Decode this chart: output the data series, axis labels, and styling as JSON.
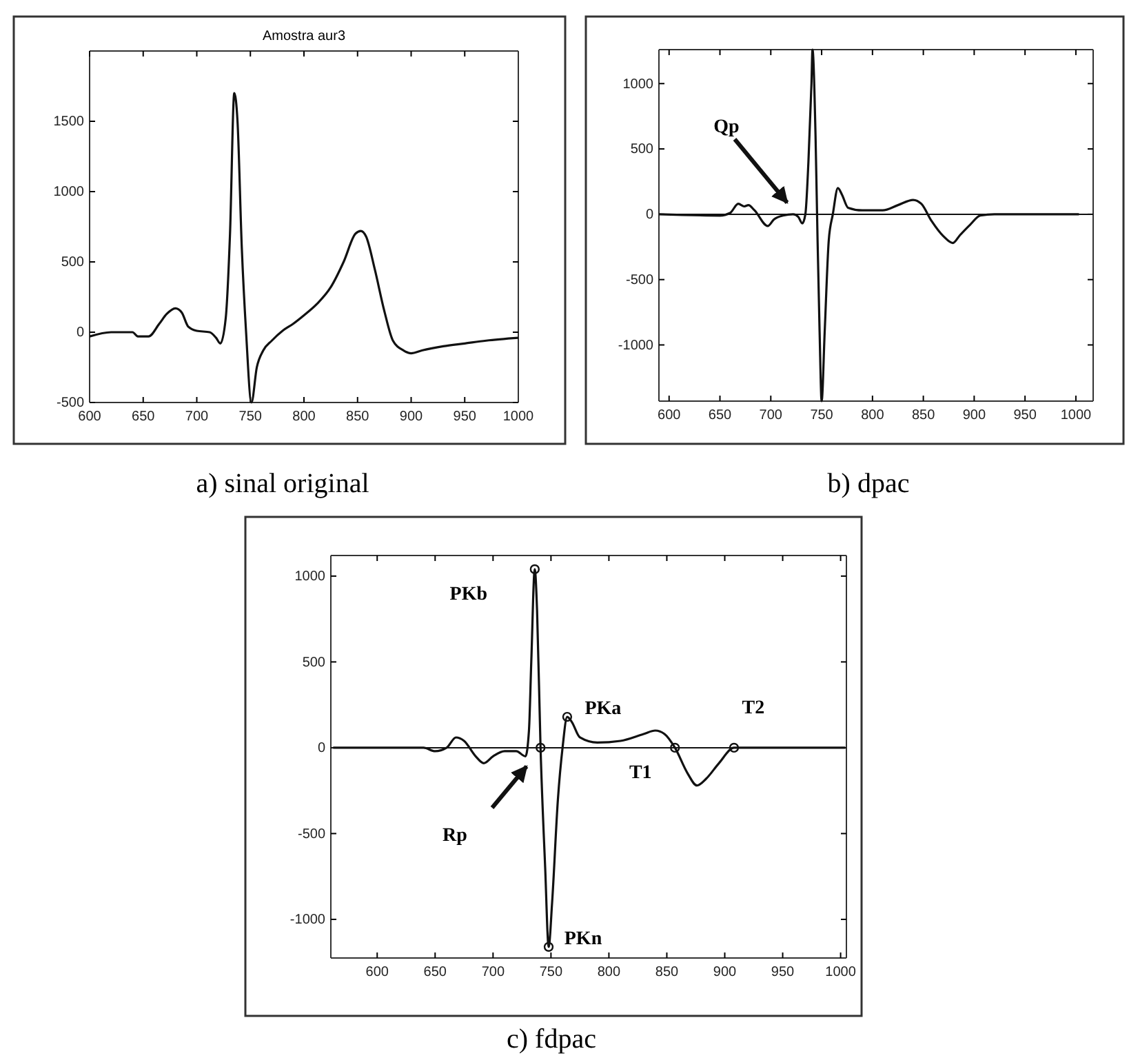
{
  "chart_data": [
    {
      "type": "line",
      "title": "Amostra aur3",
      "xlim": [
        600,
        1000
      ],
      "ylim": [
        -500,
        2000
      ],
      "xticks": [
        600,
        650,
        700,
        750,
        800,
        850,
        900,
        950,
        1000
      ],
      "yticks": [
        -500,
        0,
        500,
        1000,
        1500
      ],
      "grid": false,
      "series": [
        {
          "color": "#111111",
          "x": [
            600,
            620,
            640,
            645,
            655,
            665,
            672,
            680,
            686,
            692,
            700,
            712,
            718,
            722,
            727,
            731,
            735,
            738,
            742,
            746,
            751,
            756,
            762,
            770,
            780,
            790,
            800,
            812,
            825,
            837,
            848,
            853,
            858,
            866,
            875,
            883,
            893,
            900,
            910,
            930,
            950,
            970,
            1000
          ],
          "values": [
            -30,
            0,
            0,
            -30,
            -30,
            60,
            130,
            170,
            140,
            40,
            10,
            0,
            -40,
            -80,
            100,
            700,
            1700,
            1500,
            600,
            0,
            -500,
            -250,
            -130,
            -60,
            10,
            60,
            120,
            200,
            320,
            500,
            700,
            720,
            680,
            450,
            150,
            -60,
            -130,
            -150,
            -130,
            -100,
            -80,
            -60,
            -40
          ]
        }
      ],
      "annotations": [
        "a) sinal original"
      ]
    },
    {
      "type": "line",
      "xlim": [
        590,
        1017
      ],
      "ylim": [
        -1430,
        1260
      ],
      "xticks": [
        600,
        650,
        700,
        750,
        800,
        850,
        900,
        950,
        1000
      ],
      "yticks": [
        -1000,
        -500,
        0,
        500,
        1000
      ],
      "grid": false,
      "series": [
        {
          "color": "#111111",
          "x": [
            590,
            650,
            660,
            668,
            674,
            678,
            684,
            697,
            703,
            712,
            722,
            727,
            731,
            734,
            737,
            740,
            741,
            744,
            746,
            748,
            750,
            753,
            757,
            761,
            766,
            770,
            776,
            790,
            810,
            825,
            840,
            848,
            858,
            870,
            879,
            886,
            896,
            906,
            920,
            1003
          ],
          "values": [
            0,
            -10,
            10,
            80,
            60,
            70,
            30,
            -90,
            -40,
            -10,
            0,
            -20,
            -70,
            0,
            400,
            1000,
            1260,
            600,
            -200,
            -900,
            -1430,
            -900,
            -200,
            0,
            200,
            150,
            50,
            30,
            30,
            70,
            110,
            80,
            -50,
            -170,
            -220,
            -160,
            -80,
            -10,
            0,
            0
          ]
        }
      ],
      "ref_lines": [
        {
          "axis": "y",
          "value": 0,
          "color": "#111111"
        }
      ],
      "annotations": [
        "Qp",
        "b) dpac"
      ]
    },
    {
      "type": "line",
      "xlim": [
        560,
        1005
      ],
      "ylim": [
        -1225,
        1120
      ],
      "xticks": [
        600,
        650,
        700,
        750,
        800,
        850,
        900,
        950,
        1000
      ],
      "yticks": [
        -1000,
        -500,
        0,
        500,
        1000
      ],
      "grid": false,
      "series": [
        {
          "color": "#111111",
          "x": [
            562,
            640,
            650,
            660,
            668,
            675,
            685,
            692,
            700,
            710,
            720,
            728,
            731,
            733,
            736,
            738,
            741,
            745,
            748,
            751,
            756,
            760,
            764,
            768,
            775,
            790,
            810,
            830,
            840,
            848,
            857,
            868,
            876,
            884,
            895,
            908,
            950,
            1004
          ],
          "values": [
            0,
            0,
            -20,
            0,
            60,
            40,
            -50,
            -90,
            -50,
            -20,
            -20,
            -50,
            100,
            500,
            1040,
            800,
            0,
            -700,
            -1160,
            -900,
            -300,
            0,
            180,
            150,
            60,
            30,
            40,
            80,
            100,
            80,
            0,
            -150,
            -220,
            -180,
            -90,
            0,
            0,
            0
          ]
        },
        {
          "type": "scatter",
          "marker": "circle",
          "color": "#111111",
          "x": [
            736,
            741,
            748,
            764,
            857,
            908
          ],
          "values": [
            1040,
            0,
            -1160,
            180,
            0,
            0
          ]
        }
      ],
      "ref_lines": [
        {
          "axis": "y",
          "value": 0,
          "color": "#111111"
        }
      ],
      "annotations": [
        {
          "text": "PKb",
          "x": 736,
          "y": 1040
        },
        "Rp",
        {
          "text": "PKn",
          "x": 748,
          "y": -1160
        },
        {
          "text": "PKa",
          "x": 764,
          "y": 180
        },
        {
          "text": "T1",
          "x": 857,
          "y": 0
        },
        {
          "text": "T2",
          "x": 908,
          "y": 0
        },
        "c) fdpac"
      ]
    }
  ]
}
